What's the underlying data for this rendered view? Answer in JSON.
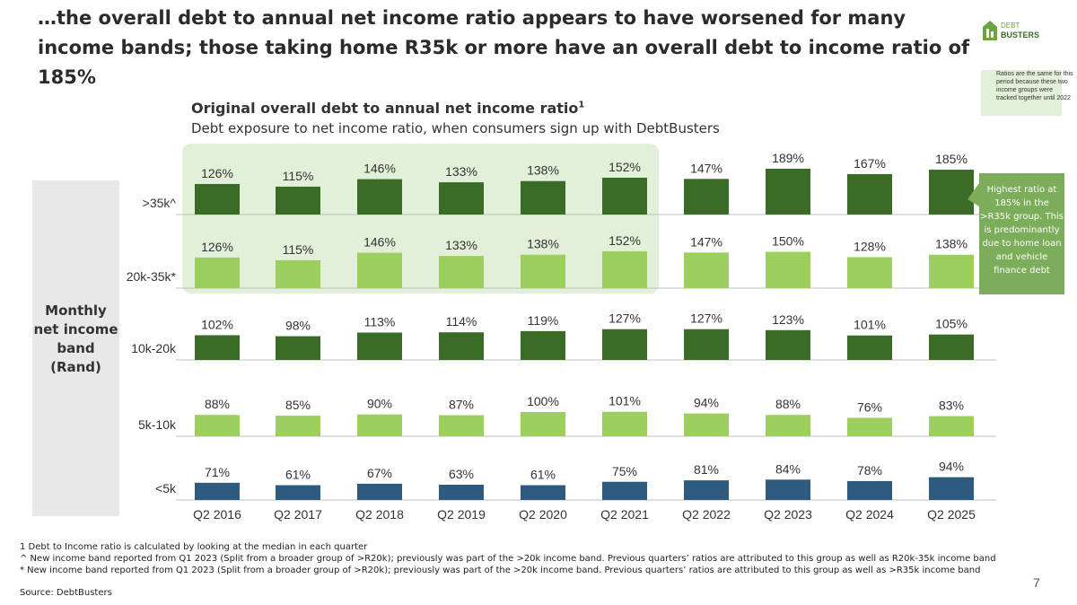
{
  "headline": "…the overall debt to annual net income ratio appears to have worsened for many income bands; those taking home R35k or more have an overall debt to income ratio of 185%",
  "logo": {
    "line1": "DEBT",
    "line2": "BUSTERS"
  },
  "legend_note": "Ratios are the same for this period because these two income groups were tracked together until 2022",
  "callout": "Highest ratio at 185% in the >R35k group. This is predominantly due to home loan and vehicle finance debt",
  "y_group_label": [
    "Monthly",
    "net income",
    "band",
    "(Rand)"
  ],
  "footnotes": [
    "1 Debt to Income ratio is calculated by looking at the median in each quarter",
    "^ New income band reported from Q1 2023 (Split from a broader group of >R20k); previously was part of the >20k income band. Previous quarters’ ratios are attributed to this group as well as R20k-35k income band",
    "* New income band reported from Q1 2023 (Split from a broader group of >R20k); previously was part of the >20k income band. Previous quarters’ ratios are attributed to this group as well as >R35k income band"
  ],
  "source": "Source: DebtBusters",
  "page_number": "7",
  "chart_data": {
    "type": "bar",
    "title": "Original overall debt to annual net income ratio",
    "title_sup": "1",
    "subtitle": "Debt exposure to net income ratio, when consumers sign up with DebtBusters",
    "unit": "%",
    "categories": [
      "Q2 2016",
      "Q2 2017",
      "Q2 2018",
      "Q2 2019",
      "Q2 2020",
      "Q2 2021",
      "Q2 2022",
      "Q2 2023",
      "Q2 2024",
      "Q2 2025"
    ],
    "series": [
      {
        "name": ">35k^",
        "color": "#3a6b27",
        "values": [
          126,
          115,
          146,
          133,
          138,
          152,
          147,
          189,
          167,
          185
        ]
      },
      {
        "name": "20k-35k*",
        "color": "#9ccf5e",
        "values": [
          126,
          115,
          146,
          133,
          138,
          152,
          147,
          150,
          128,
          138
        ]
      },
      {
        "name": "10k-20k",
        "color": "#3a6b27",
        "values": [
          102,
          98,
          113,
          114,
          119,
          127,
          127,
          123,
          101,
          105
        ]
      },
      {
        "name": "5k-10k",
        "color": "#9ccf5e",
        "values": [
          88,
          85,
          90,
          87,
          100,
          101,
          94,
          88,
          76,
          83
        ]
      },
      {
        "name": "<5k",
        "color": "#2e5a7f",
        "values": [
          71,
          61,
          67,
          63,
          61,
          75,
          81,
          84,
          78,
          94
        ]
      }
    ],
    "shaded_period": [
      "Q2 2016",
      "Q2 2021"
    ]
  }
}
